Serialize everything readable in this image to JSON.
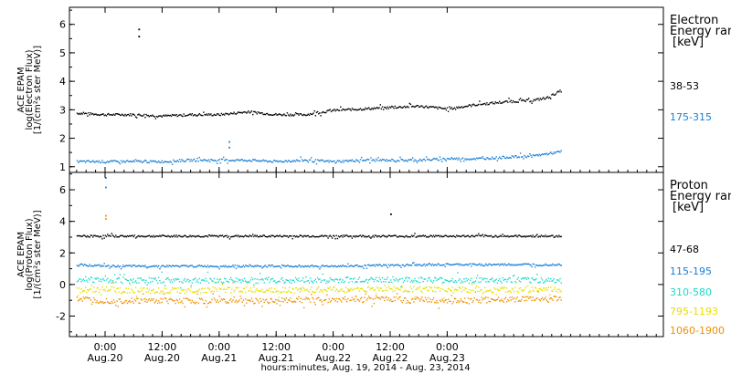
{
  "chart_data": [
    {
      "type": "scatter",
      "panel": "electron",
      "ylabel_lines": [
        "ACE EPAM",
        "log(Electron Flux)",
        "[1/(cm²s ster MeV)]"
      ],
      "ylim": [
        0.8,
        6.6
      ],
      "yticks": [
        "1",
        "2",
        "3",
        "4",
        "5",
        "6"
      ],
      "legend_title": [
        "Electron",
        "Energy ran",
        "[keV]"
      ],
      "series": [
        {
          "name": "38-53",
          "color": "#000000",
          "points": [
            [
              -6,
              2.9
            ],
            [
              0,
              2.85
            ],
            [
              6,
              2.85
            ],
            [
              12,
              2.8
            ],
            [
              18,
              2.85
            ],
            [
              24,
              2.85
            ],
            [
              30,
              2.95
            ],
            [
              36,
              2.85
            ],
            [
              42,
              2.85
            ],
            [
              48,
              3.0
            ],
            [
              54,
              3.05
            ],
            [
              60,
              3.1
            ],
            [
              66,
              3.15
            ],
            [
              72,
              3.05
            ],
            [
              78,
              3.2
            ],
            [
              84,
              3.3
            ],
            [
              90,
              3.35
            ],
            [
              93,
              3.45
            ],
            [
              96,
              3.7
            ]
          ],
          "outliers": [
            [
              7,
              5.85
            ],
            [
              7,
              5.6
            ]
          ]
        },
        {
          "name": "175-315",
          "color": "#1a7fd4",
          "points": [
            [
              -6,
              1.2
            ],
            [
              0,
              1.2
            ],
            [
              6,
              1.2
            ],
            [
              12,
              1.2
            ],
            [
              18,
              1.25
            ],
            [
              24,
              1.25
            ],
            [
              30,
              1.25
            ],
            [
              36,
              1.2
            ],
            [
              42,
              1.25
            ],
            [
              48,
              1.2
            ],
            [
              54,
              1.25
            ],
            [
              60,
              1.25
            ],
            [
              66,
              1.25
            ],
            [
              72,
              1.3
            ],
            [
              78,
              1.3
            ],
            [
              84,
              1.35
            ],
            [
              90,
              1.4
            ],
            [
              96,
              1.55
            ]
          ],
          "outliers": [
            [
              26,
              1.9
            ],
            [
              26,
              1.7
            ]
          ]
        }
      ]
    },
    {
      "type": "scatter",
      "panel": "proton",
      "ylabel_lines": [
        "ACE EPAM",
        "log(Proton Flux)",
        "[1/(cm²s ster MeV)]"
      ],
      "ylim": [
        -3.3,
        7.1
      ],
      "yticks": [
        "-2",
        "0",
        "2",
        "4",
        "6"
      ],
      "legend_title": [
        "Proton",
        "Energy ran",
        "[keV]"
      ],
      "series": [
        {
          "name": "47-68",
          "color": "#000000",
          "points": [
            [
              -6,
              3.1
            ],
            [
              0,
              3.1
            ],
            [
              12,
              3.1
            ],
            [
              24,
              3.1
            ],
            [
              36,
              3.1
            ],
            [
              48,
              3.1
            ],
            [
              60,
              3.1
            ],
            [
              72,
              3.1
            ],
            [
              84,
              3.1
            ],
            [
              96,
              3.1
            ]
          ],
          "outliers": [
            [
              60,
              4.5
            ]
          ]
        },
        {
          "name": "115-195",
          "color": "#1a7fd4",
          "points": [
            [
              -6,
              1.3
            ],
            [
              0,
              1.2
            ],
            [
              12,
              1.2
            ],
            [
              24,
              1.2
            ],
            [
              36,
              1.2
            ],
            [
              48,
              1.2
            ],
            [
              60,
              1.25
            ],
            [
              72,
              1.3
            ],
            [
              84,
              1.3
            ],
            [
              96,
              1.3
            ]
          ],
          "outliers": [
            [
              0,
              6.8
            ],
            [
              0,
              6.2
            ]
          ]
        },
        {
          "name": "310-580",
          "color": "#20d8c8",
          "points": [
            [
              -6,
              0.4
            ],
            [
              0,
              0.3
            ],
            [
              12,
              0.3
            ],
            [
              24,
              0.3
            ],
            [
              36,
              0.3
            ],
            [
              48,
              0.3
            ],
            [
              60,
              0.35
            ],
            [
              72,
              0.3
            ],
            [
              84,
              0.3
            ],
            [
              96,
              0.3
            ]
          ]
        },
        {
          "name": "795-1193",
          "color": "#e8e000",
          "points": [
            [
              -6,
              -0.3
            ],
            [
              0,
              -0.3
            ],
            [
              12,
              -0.35
            ],
            [
              24,
              -0.3
            ],
            [
              36,
              -0.3
            ],
            [
              48,
              -0.3
            ],
            [
              60,
              -0.25
            ],
            [
              72,
              -0.3
            ],
            [
              84,
              -0.3
            ],
            [
              96,
              -0.3
            ]
          ]
        },
        {
          "name": "1060-1900",
          "color": "#f09000",
          "points": [
            [
              -6,
              -0.9
            ],
            [
              0,
              -1.0
            ],
            [
              12,
              -1.0
            ],
            [
              24,
              -1.0
            ],
            [
              36,
              -1.0
            ],
            [
              48,
              -0.9
            ],
            [
              60,
              -0.85
            ],
            [
              72,
              -1.0
            ],
            [
              84,
              -0.9
            ],
            [
              96,
              -0.9
            ]
          ],
          "outliers": [
            [
              0,
              4.4
            ],
            [
              0,
              4.2
            ]
          ]
        }
      ]
    }
  ],
  "x_axis": {
    "xlim_hours": [
      -7.5,
      117.5
    ],
    "ticks": [
      {
        "hour": 0,
        "time": "0:00",
        "date": "Aug.20"
      },
      {
        "hour": 12,
        "time": "12:00",
        "date": "Aug.20"
      },
      {
        "hour": 24,
        "time": "0:00",
        "date": "Aug.21"
      },
      {
        "hour": 36,
        "time": "12:00",
        "date": "Aug.21"
      },
      {
        "hour": 48,
        "time": "0:00",
        "date": "Aug.22"
      },
      {
        "hour": 60,
        "time": "12:00",
        "date": "Aug.22"
      },
      {
        "hour": 72,
        "time": "0:00",
        "date": "Aug.23"
      }
    ],
    "xlabel": "hours:minutes, Aug. 19, 2014 - Aug. 23, 2014"
  },
  "colors": {
    "axis": "#000000",
    "background": "#ffffff"
  }
}
